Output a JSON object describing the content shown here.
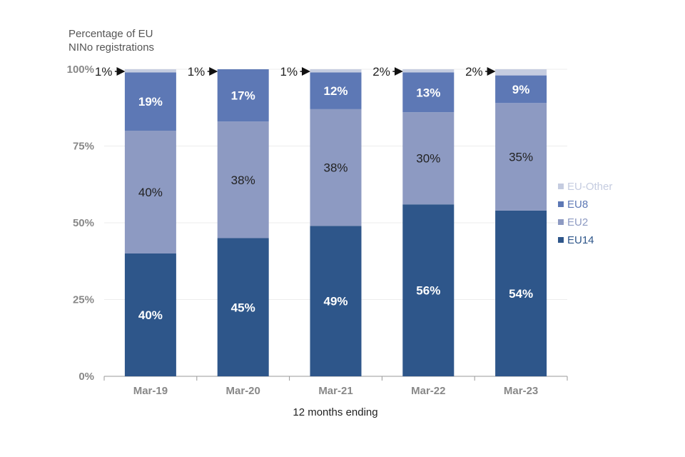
{
  "chart_data": {
    "type": "bar",
    "stacked": true,
    "title": "Percentage of EU NINo registrations",
    "ylabel_lines": [
      "Percentage of EU",
      "NINo registrations"
    ],
    "xlabel": "12 months ending",
    "categories": [
      "Mar-19",
      "Mar-20",
      "Mar-21",
      "Mar-22",
      "Mar-23"
    ],
    "ylim": [
      0,
      100
    ],
    "yticks": [
      0,
      25,
      50,
      75,
      100
    ],
    "ytick_labels": [
      "0%",
      "25%",
      "50%",
      "75%",
      "100%"
    ],
    "series": [
      {
        "name": "EU14",
        "color": "#2e568a",
        "values": [
          40,
          45,
          49,
          56,
          54
        ],
        "labels": [
          "40%",
          "45%",
          "49%",
          "56%",
          "54%"
        ]
      },
      {
        "name": "EU2",
        "color": "#8d9ac2",
        "values": [
          40,
          38,
          38,
          30,
          35
        ],
        "labels": [
          "40%",
          "38%",
          "38%",
          "30%",
          "35%"
        ]
      },
      {
        "name": "EU8",
        "color": "#5d78b5",
        "values": [
          19,
          17,
          12,
          13,
          9
        ],
        "labels": [
          "19%",
          "17%",
          "12%",
          "13%",
          "9%"
        ]
      },
      {
        "name": "EU-Other",
        "color": "#c5cce0",
        "values": [
          1,
          1,
          1,
          2,
          2
        ],
        "labels": [
          "1%",
          "1%",
          "1%",
          "2%",
          "2%"
        ]
      }
    ],
    "legend": {
      "placement": "right",
      "order": [
        "EU-Other",
        "EU8",
        "EU2",
        "EU14"
      ]
    }
  }
}
